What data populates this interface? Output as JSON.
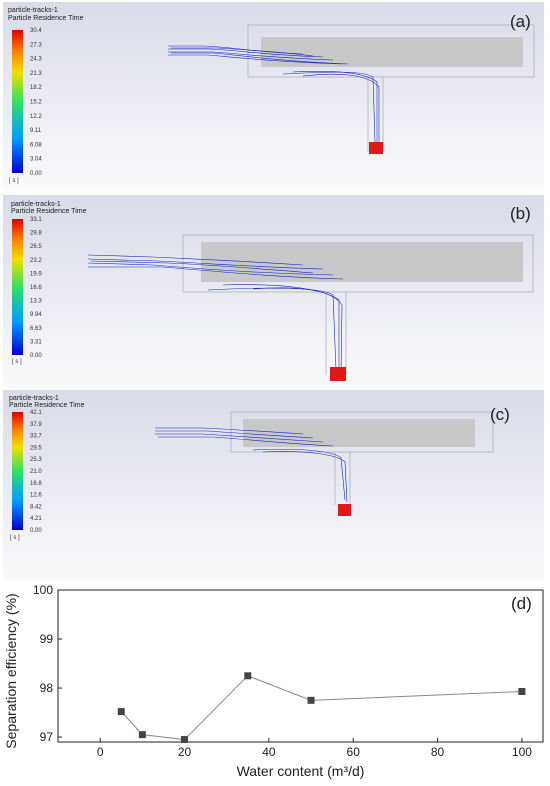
{
  "panels": [
    {
      "id": "a",
      "letter": "(a)",
      "title": "particle-tracks-1",
      "subtitle": "Particle Residence Time",
      "ticks": [
        "30.4",
        "27.3",
        "24.3",
        "21.3",
        "18.2",
        "15.2",
        "12.2",
        "9.11",
        "6.08",
        "3.04",
        "0.00"
      ],
      "unit": "[ s ]"
    },
    {
      "id": "b",
      "letter": "(b)",
      "title": "particle-tracks-1",
      "subtitle": "Particle Residence Time",
      "ticks": [
        "33.1",
        "29.8",
        "26.5",
        "23.2",
        "19.9",
        "16.6",
        "13.3",
        "9.94",
        "6.63",
        "3.31",
        "0.00"
      ],
      "unit": "[ s ]"
    },
    {
      "id": "c",
      "letter": "(c)",
      "title": "particle-tracks-1",
      "subtitle": "Particle Residence Time",
      "ticks": [
        "42.1",
        "37.9",
        "33.7",
        "29.5",
        "25.3",
        "21.0",
        "16.8",
        "12.6",
        "8.42",
        "4.21",
        "0.00"
      ],
      "unit": "[ s ]"
    }
  ],
  "colors": {
    "tracks": "#1428c8",
    "outlet": "#e01818",
    "pipe": "#c0c0c0",
    "marker": "#444444"
  },
  "chart_data": {
    "type": "line",
    "panel_label": "(d)",
    "xlabel": "Water content (m³/d)",
    "ylabel": "Separation efficiency (%)",
    "xlim": [
      -10,
      105
    ],
    "ylim": [
      96.9,
      100
    ],
    "xticks": [
      0,
      20,
      40,
      60,
      80,
      100
    ],
    "yticks": [
      97,
      98,
      99,
      100
    ],
    "series": [
      {
        "x": [
          5,
          10,
          20,
          35,
          50,
          100
        ],
        "y": [
          97.52,
          97.05,
          96.95,
          98.25,
          97.75,
          97.93
        ]
      }
    ]
  }
}
